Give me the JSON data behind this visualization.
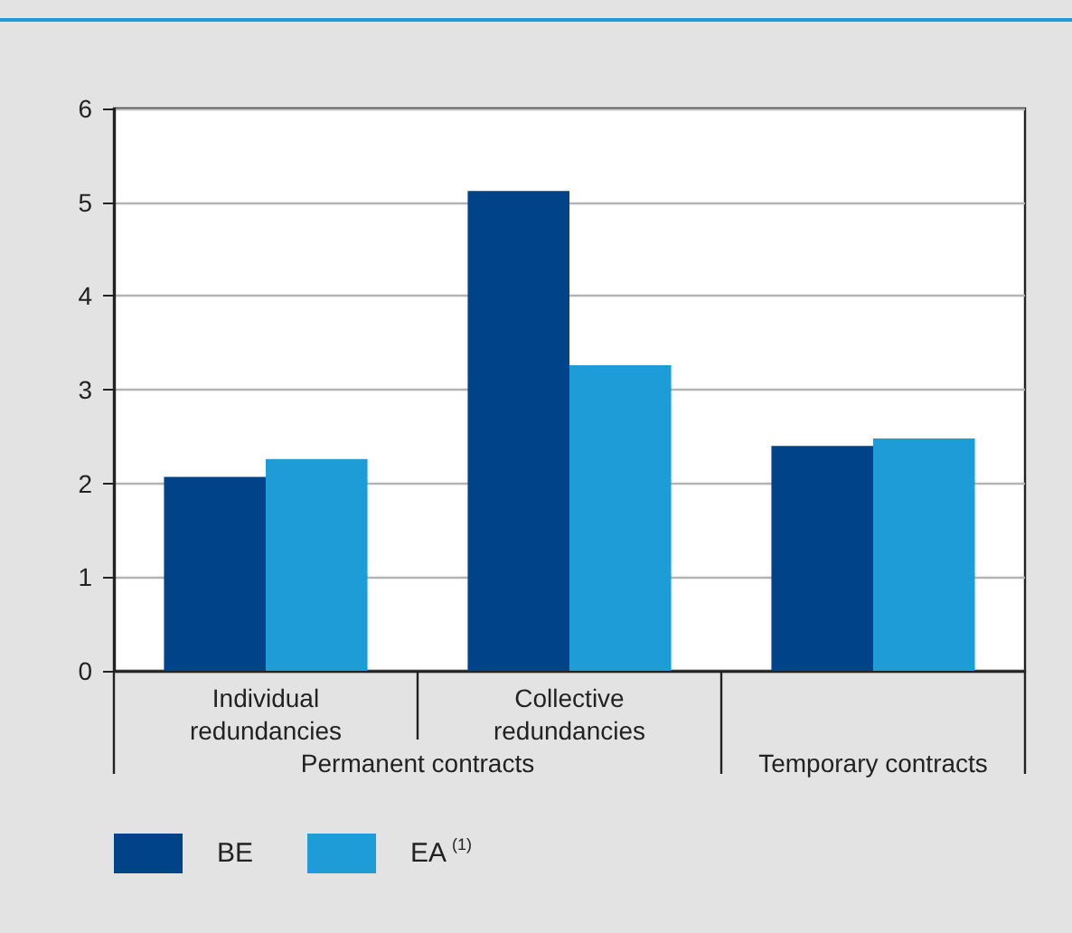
{
  "chart_data": {
    "type": "bar",
    "categories": [
      "Individual\nredundancies",
      "Collective\nredundancies",
      null
    ],
    "series": [
      {
        "name": "BE",
        "color": "#004388",
        "values": [
          2.07,
          5.12,
          2.4
        ]
      },
      {
        "name": "EA$^{(1)}$",
        "color": "#1d9cd8",
        "values": [
          2.26,
          3.26,
          2.48
        ]
      }
    ],
    "ylim": [
      0,
      6
    ],
    "yticks": [
      0,
      1,
      2,
      3,
      4,
      5,
      6
    ],
    "grid": "y",
    "legend": "bottom left",
    "annotations": [
      "Permanent contracts",
      "Temporary contracts"
    ]
  }
}
